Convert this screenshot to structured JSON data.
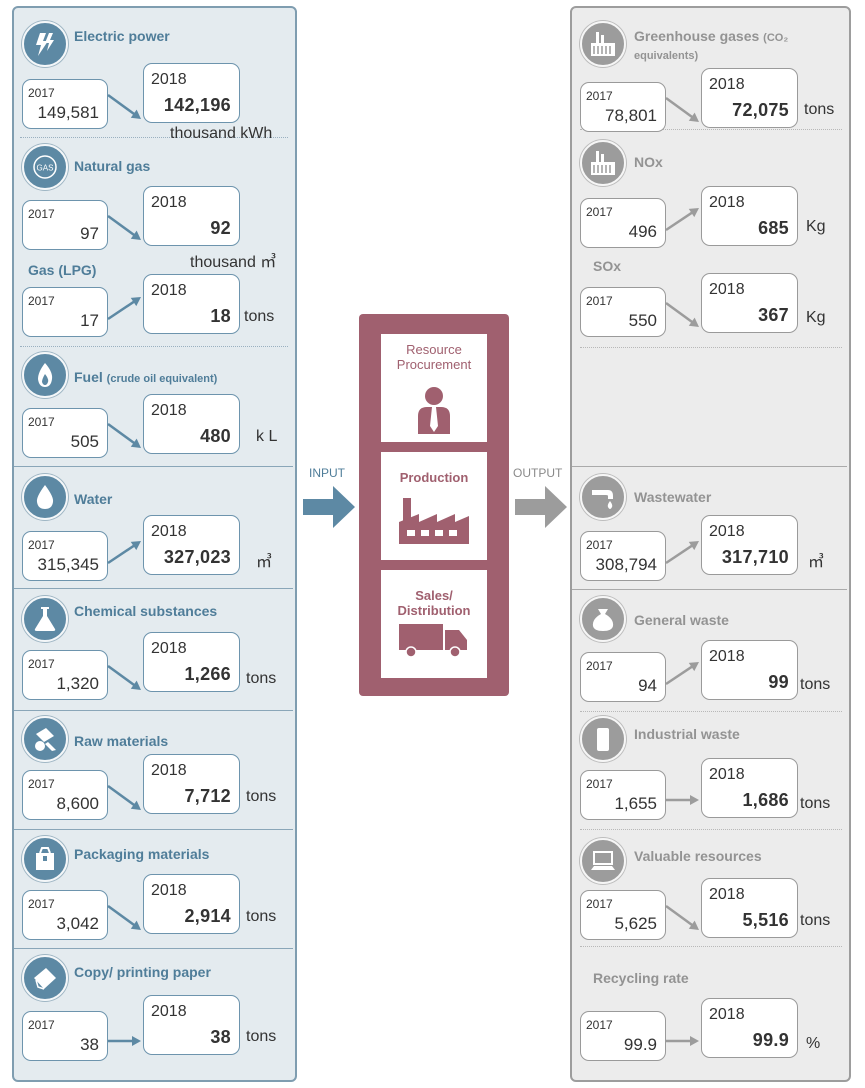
{
  "input": {
    "label": "INPUT",
    "items": [
      {
        "title": "Electric power",
        "icon": "lightning-icon",
        "y2017": "2017",
        "v2017": "149,581",
        "y2018": "2018",
        "v2018": "142,196",
        "unit": "thousand kWh"
      },
      {
        "title": "Natural gas",
        "icon": "gas-icon",
        "icon_text": "GAS",
        "y2017": "2017",
        "v2017": "97",
        "y2018": "2018",
        "v2018": "92",
        "unit": "thousand ㎥"
      },
      {
        "title": "Gas (LPG)",
        "y2017": "2017",
        "v2017": "17",
        "y2018": "2018",
        "v2018": "18",
        "unit": "tons"
      },
      {
        "title": "Fuel",
        "title_note": "(crude oil equivalent)",
        "icon": "flame-icon",
        "y2017": "2017",
        "v2017": "505",
        "y2018": "2018",
        "v2018": "480",
        "unit": "k L"
      },
      {
        "title": "Water",
        "icon": "water-drop-icon",
        "y2017": "2017",
        "v2017": "315,345",
        "y2018": "2018",
        "v2018": "327,023",
        "unit": "㎥"
      },
      {
        "title": "Chemical substances",
        "icon": "flask-icon",
        "y2017": "2017",
        "v2017": "1,320",
        "y2018": "2018",
        "v2018": "1,266",
        "unit": "tons"
      },
      {
        "title": "Raw materials",
        "icon": "raw-materials-icon",
        "y2017": "2017",
        "v2017": "8,600",
        "y2018": "2018",
        "v2018": "7,712",
        "unit": "tons"
      },
      {
        "title": "Packaging materials",
        "icon": "package-icon",
        "y2017": "2017",
        "v2017": "3,042",
        "y2018": "2018",
        "v2018": "2,914",
        "unit": "tons"
      },
      {
        "title": "Copy/ printing paper",
        "icon": "paper-icon",
        "y2017": "2017",
        "v2017": "38",
        "y2018": "2018",
        "v2018": "38",
        "unit": "tons"
      }
    ]
  },
  "process": {
    "stages": [
      "Resource Procurement",
      "Production",
      "Sales/ Distribution"
    ]
  },
  "output": {
    "label": "OUTPUT",
    "items": [
      {
        "title": "Greenhouse gases",
        "title_note": "(CO₂ equivalents)",
        "icon": "factory-icon",
        "y2017": "2017",
        "v2017": "78,801",
        "y2018": "2018",
        "v2018": "72,075",
        "unit": "tons"
      },
      {
        "title": "NOx",
        "icon": "factory-icon",
        "y2017": "2017",
        "v2017": "496",
        "y2018": "2018",
        "v2018": "685",
        "unit": "Kg"
      },
      {
        "title": "SOx",
        "y2017": "2017",
        "v2017": "550",
        "y2018": "2018",
        "v2018": "367",
        "unit": "Kg"
      },
      {
        "title": "Wastewater",
        "icon": "faucet-icon",
        "y2017": "2017",
        "v2017": "308,794",
        "y2018": "2018",
        "v2018": "317,710",
        "unit": "㎥"
      },
      {
        "title": "General waste",
        "icon": "waste-bag-icon",
        "y2017": "2017",
        "v2017": "94",
        "y2018": "2018",
        "v2018": "99",
        "unit": "tons"
      },
      {
        "title": "Industrial waste",
        "icon": "bin-icon",
        "y2017": "2017",
        "v2017": "1,655",
        "y2018": "2018",
        "v2018": "1,686",
        "unit": "tons"
      },
      {
        "title": "Valuable resources",
        "icon": "computer-icon",
        "y2017": "2017",
        "v2017": "5,625",
        "y2018": "2018",
        "v2018": "5,516",
        "unit": "tons"
      },
      {
        "title": "Recycling rate",
        "y2017": "2017",
        "v2017": "99.9",
        "y2018": "2018",
        "v2018": "99.9",
        "unit": "%"
      }
    ]
  },
  "colors": {
    "input_accent": "#5d89a4",
    "output_accent": "#9c9c9c",
    "process_accent": "#a0606f"
  }
}
